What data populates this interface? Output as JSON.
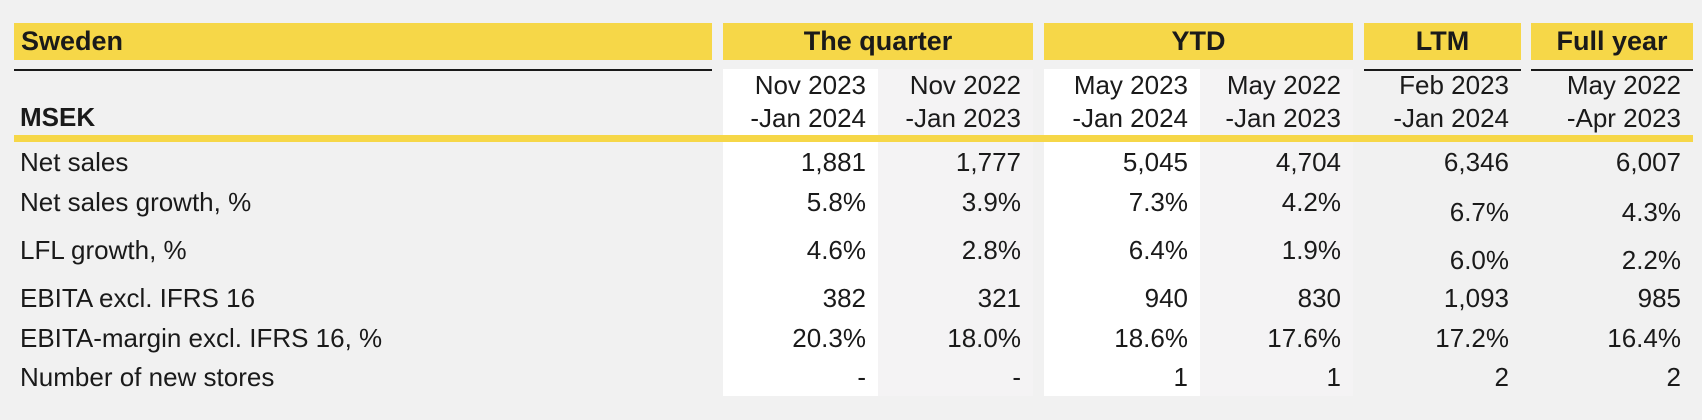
{
  "colors": {
    "accent_yellow": "#F6D748",
    "page_background": "#F1F1F1",
    "highlight_column_white": "#FFFFFF",
    "highlight_column_gray": "#F4F3F4",
    "text": "#1A1A1A"
  },
  "table": {
    "region": "Sweden",
    "unit": "MSEK",
    "groups": [
      {
        "label": "The quarter"
      },
      {
        "label": "YTD"
      },
      {
        "label": "LTM"
      },
      {
        "label": "Full year"
      }
    ],
    "periods": [
      {
        "l1": "Nov 2023",
        "l2": "-Jan 2024"
      },
      {
        "l1": "Nov 2022",
        "l2": "-Jan 2023"
      },
      {
        "l1": "May 2023",
        "l2": "-Jan 2024"
      },
      {
        "l1": "May 2022",
        "l2": "-Jan 2023"
      },
      {
        "l1": "Feb 2023",
        "l2": "-Jan 2024"
      },
      {
        "l1": "May 2022",
        "l2": "-Apr 2023"
      }
    ],
    "rows": [
      {
        "label": "Net sales",
        "values": [
          "1,881",
          "1,777",
          "5,045",
          "4,704",
          "6,346",
          "6,007"
        ]
      },
      {
        "label": "Net sales growth, %",
        "values": [
          "5.8%",
          "3.9%",
          "7.3%",
          "4.2%",
          "6.7%",
          "4.3%"
        ]
      },
      {
        "label": "LFL growth, %",
        "values": [
          "4.6%",
          "2.8%",
          "6.4%",
          "1.9%",
          "6.0%",
          "2.2%"
        ]
      },
      {
        "label": "EBITA excl. IFRS 16",
        "values": [
          "382",
          "321",
          "940",
          "830",
          "1,093",
          "985"
        ]
      },
      {
        "label": "EBITA-margin excl. IFRS 16, %",
        "values": [
          "20.3%",
          "18.0%",
          "18.6%",
          "17.6%",
          "17.2%",
          "16.4%"
        ]
      },
      {
        "label": "Number of new stores",
        "values": [
          "-",
          "-",
          "1",
          "1",
          "2",
          "2"
        ]
      }
    ]
  }
}
